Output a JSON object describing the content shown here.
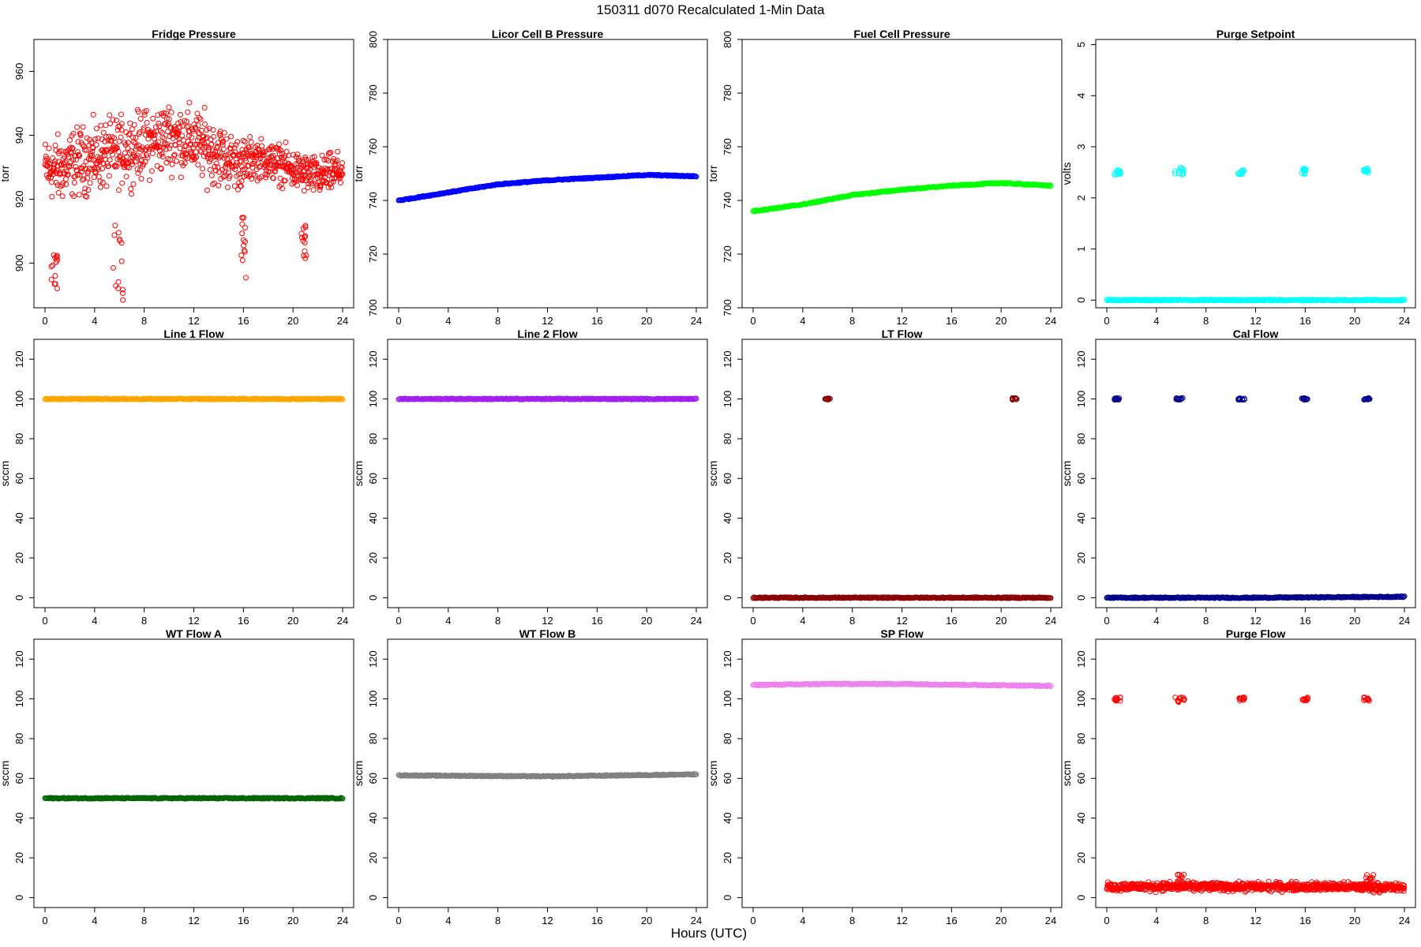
{
  "header": {
    "title": "150311   d070   Recalculated 1-Min Data",
    "x_axis_label": "Hours (UTC)"
  },
  "chart_data": [
    {
      "type": "scatter",
      "title": "Fridge Pressure",
      "ylabel": "torr",
      "xlabel": "",
      "xlim": [
        0,
        24
      ],
      "ylim": [
        886,
        970
      ],
      "xticks": [
        0,
        4,
        8,
        12,
        16,
        20,
        24
      ],
      "yticks": [
        900,
        920,
        940,
        960
      ],
      "marker": "open-circle",
      "color": "#ff0000",
      "series": [
        {
          "pattern": "noisy",
          "x": [
            0,
            1,
            2,
            3,
            4,
            5,
            6,
            7,
            8,
            9,
            10,
            11,
            12,
            13,
            14,
            15,
            16,
            17,
            18,
            19,
            20,
            21,
            22,
            23,
            24
          ],
          "y": [
            930,
            929,
            931,
            932,
            933,
            934,
            935,
            936,
            937,
            938,
            940,
            939,
            938,
            936,
            934,
            932,
            931,
            933,
            932,
            931,
            929,
            928,
            927,
            928,
            929
          ],
          "spread": [
            10,
            12,
            12,
            12,
            12,
            12,
            12,
            12,
            12,
            12,
            12,
            12,
            12,
            12,
            11,
            10,
            9,
            7,
            7,
            7,
            7,
            7,
            7,
            7,
            7
          ]
        }
      ],
      "ranges": [
        {
          "x": [
            0.5,
            1.0
          ],
          "y": [
            892,
            903
          ]
        },
        {
          "x": [
            5.5,
            6.3
          ],
          "y": [
            888,
            912
          ]
        },
        {
          "x": [
            15.8,
            16.2
          ],
          "y": [
            892,
            915
          ]
        },
        {
          "x": [
            20.6,
            21.2
          ],
          "y": [
            901,
            912
          ]
        }
      ]
    },
    {
      "type": "scatter",
      "title": "Licor Cell B Pressure",
      "ylabel": "torr",
      "xlabel": "",
      "xlim": [
        0,
        24
      ],
      "ylim": [
        700,
        800
      ],
      "xticks": [
        0,
        4,
        8,
        12,
        16,
        20,
        24
      ],
      "yticks": [
        700,
        720,
        740,
        760,
        780,
        800
      ],
      "marker": "open-circle",
      "color": "#0000ff",
      "series": [
        {
          "pattern": "smooth",
          "x": [
            0,
            4,
            8,
            12,
            16,
            20,
            24
          ],
          "y": [
            740,
            743,
            746,
            747.5,
            748.5,
            749.5,
            749
          ]
        }
      ]
    },
    {
      "type": "scatter",
      "title": "Fuel Cell Pressure",
      "ylabel": "torr",
      "xlabel": "",
      "xlim": [
        0,
        24
      ],
      "ylim": [
        700,
        800
      ],
      "xticks": [
        0,
        4,
        8,
        12,
        16,
        20,
        24
      ],
      "yticks": [
        700,
        720,
        740,
        760,
        780,
        800
      ],
      "marker": "open-circle",
      "color": "#00ff00",
      "series": [
        {
          "pattern": "smooth",
          "x": [
            0,
            4,
            8,
            12,
            16,
            20,
            24
          ],
          "y": [
            736,
            738.5,
            742,
            744,
            745.5,
            746.5,
            745.5
          ]
        }
      ]
    },
    {
      "type": "scatter",
      "title": "Purge Setpoint",
      "ylabel": "volts",
      "xlabel": "",
      "xlim": [
        0,
        24
      ],
      "ylim": [
        -0.15,
        5.1
      ],
      "xticks": [
        0,
        4,
        8,
        12,
        16,
        20,
        24
      ],
      "yticks": [
        0,
        1,
        2,
        3,
        4,
        5
      ],
      "marker": "open-circle",
      "color": "#00ffff",
      "series": [
        {
          "pattern": "smooth",
          "x": [
            0,
            24
          ],
          "y": [
            0,
            0
          ]
        }
      ],
      "clusters": [
        {
          "x": [
            0.6,
            1.1
          ],
          "y": [
            2.45,
            2.55
          ]
        },
        {
          "x": [
            5.5,
            6.2
          ],
          "y": [
            2.45,
            2.6
          ]
        },
        {
          "x": [
            10.6,
            11.1
          ],
          "y": [
            2.45,
            2.55
          ]
        },
        {
          "x": [
            15.7,
            16.1
          ],
          "y": [
            2.45,
            2.6
          ]
        },
        {
          "x": [
            20.7,
            21.1
          ],
          "y": [
            2.48,
            2.58
          ]
        }
      ]
    },
    {
      "type": "scatter",
      "title": "Line 1 Flow",
      "ylabel": "sccm",
      "xlabel": "",
      "xlim": [
        0,
        24
      ],
      "ylim": [
        -5,
        130
      ],
      "xticks": [
        0,
        4,
        8,
        12,
        16,
        20,
        24
      ],
      "yticks": [
        0,
        20,
        40,
        60,
        80,
        100,
        120
      ],
      "marker": "open-circle",
      "color": "#ffa500",
      "series": [
        {
          "pattern": "smooth",
          "x": [
            0,
            24
          ],
          "y": [
            100,
            100
          ]
        }
      ]
    },
    {
      "type": "scatter",
      "title": "Line 2 Flow",
      "ylabel": "sccm",
      "xlabel": "",
      "xlim": [
        0,
        24
      ],
      "ylim": [
        -5,
        130
      ],
      "xticks": [
        0,
        4,
        8,
        12,
        16,
        20,
        24
      ],
      "yticks": [
        0,
        20,
        40,
        60,
        80,
        100,
        120
      ],
      "marker": "open-circle",
      "color": "#a020f0",
      "series": [
        {
          "pattern": "smooth",
          "x": [
            0,
            24
          ],
          "y": [
            100,
            100
          ]
        }
      ]
    },
    {
      "type": "scatter",
      "title": "LT Flow",
      "ylabel": "sccm",
      "xlabel": "",
      "xlim": [
        0,
        24
      ],
      "ylim": [
        -5,
        130
      ],
      "xticks": [
        0,
        4,
        8,
        12,
        16,
        20,
        24
      ],
      "yticks": [
        0,
        20,
        40,
        60,
        80,
        100,
        120
      ],
      "marker": "open-circle",
      "color": "#8b0000",
      "series": [
        {
          "pattern": "smooth",
          "x": [
            0,
            24
          ],
          "y": [
            0,
            0
          ]
        }
      ],
      "clusters": [
        {
          "x": [
            5.8,
            6.2
          ],
          "y": [
            99.5,
            100.5
          ]
        },
        {
          "x": [
            20.9,
            21.3
          ],
          "y": [
            99.5,
            100.5
          ]
        }
      ]
    },
    {
      "type": "scatter",
      "title": "Cal Flow",
      "ylabel": "sccm",
      "xlabel": "",
      "xlim": [
        0,
        24
      ],
      "ylim": [
        -5,
        130
      ],
      "xticks": [
        0,
        4,
        8,
        12,
        16,
        20,
        24
      ],
      "yticks": [
        0,
        20,
        40,
        60,
        80,
        100,
        120
      ],
      "marker": "open-circle",
      "color": "#00008b",
      "series": [
        {
          "pattern": "smooth",
          "x": [
            0,
            12,
            24
          ],
          "y": [
            0,
            0,
            0.5
          ]
        }
      ],
      "clusters": [
        {
          "x": [
            0.6,
            1.1
          ],
          "y": [
            99.5,
            100.5
          ]
        },
        {
          "x": [
            5.6,
            6.3
          ],
          "y": [
            99.5,
            100.5
          ]
        },
        {
          "x": [
            10.6,
            11.1
          ],
          "y": [
            99.5,
            100.5
          ]
        },
        {
          "x": [
            15.7,
            16.2
          ],
          "y": [
            99.5,
            100.5
          ]
        },
        {
          "x": [
            20.7,
            21.2
          ],
          "y": [
            99.5,
            100.5
          ]
        }
      ]
    },
    {
      "type": "scatter",
      "title": "WT Flow A",
      "ylabel": "sccm",
      "xlabel": "",
      "xlim": [
        0,
        24
      ],
      "ylim": [
        -5,
        130
      ],
      "xticks": [
        0,
        4,
        8,
        12,
        16,
        20,
        24
      ],
      "yticks": [
        0,
        20,
        40,
        60,
        80,
        100,
        120
      ],
      "marker": "open-circle",
      "color": "#006400",
      "series": [
        {
          "pattern": "smooth",
          "x": [
            0,
            24
          ],
          "y": [
            50,
            50
          ]
        }
      ]
    },
    {
      "type": "scatter",
      "title": "WT Flow B",
      "ylabel": "sccm",
      "xlabel": "",
      "xlim": [
        0,
        24
      ],
      "ylim": [
        -5,
        130
      ],
      "xticks": [
        0,
        4,
        8,
        12,
        16,
        20,
        24
      ],
      "yticks": [
        0,
        20,
        40,
        60,
        80,
        100,
        120
      ],
      "marker": "open-circle",
      "color": "#808080",
      "series": [
        {
          "pattern": "smooth",
          "x": [
            0,
            12,
            24
          ],
          "y": [
            61.5,
            61,
            62
          ]
        }
      ]
    },
    {
      "type": "scatter",
      "title": "SP Flow",
      "ylabel": "sccm",
      "xlabel": "",
      "xlim": [
        0,
        24
      ],
      "ylim": [
        -5,
        130
      ],
      "xticks": [
        0,
        4,
        8,
        12,
        16,
        20,
        24
      ],
      "yticks": [
        0,
        20,
        40,
        60,
        80,
        100,
        120
      ],
      "marker": "open-circle",
      "color": "#ee82ee",
      "series": [
        {
          "pattern": "smooth",
          "x": [
            0,
            6,
            12,
            18,
            24
          ],
          "y": [
            107,
            107.5,
            107.5,
            107,
            106.5
          ]
        }
      ]
    },
    {
      "type": "scatter",
      "title": "Purge Flow",
      "ylabel": "sccm",
      "xlabel": "",
      "xlim": [
        0,
        24
      ],
      "ylim": [
        -5,
        130
      ],
      "xticks": [
        0,
        4,
        8,
        12,
        16,
        20,
        24
      ],
      "yticks": [
        0,
        20,
        40,
        60,
        80,
        100,
        120
      ],
      "marker": "open-circle",
      "color": "#ff0000",
      "series": [
        {
          "pattern": "noisy",
          "x": [
            0,
            6,
            12,
            18,
            24
          ],
          "y": [
            5.5,
            5.5,
            5.5,
            5.5,
            5
          ],
          "spread": [
            2.5,
            2.5,
            2.5,
            2.5,
            2.5
          ]
        }
      ],
      "clusters": [
        {
          "x": [
            0.6,
            1.1
          ],
          "y": [
            99,
            101
          ]
        },
        {
          "x": [
            5.5,
            6.3
          ],
          "y": [
            98,
            101
          ]
        },
        {
          "x": [
            10.6,
            11.1
          ],
          "y": [
            99,
            101
          ]
        },
        {
          "x": [
            15.7,
            16.2
          ],
          "y": [
            99,
            101
          ]
        },
        {
          "x": [
            20.7,
            21.2
          ],
          "y": [
            99,
            101
          ]
        }
      ],
      "ranges": [
        {
          "x": [
            5.7,
            6.3
          ],
          "y": [
            6,
            12
          ]
        },
        {
          "x": [
            20.9,
            21.5
          ],
          "y": [
            6,
            12
          ]
        }
      ]
    }
  ]
}
